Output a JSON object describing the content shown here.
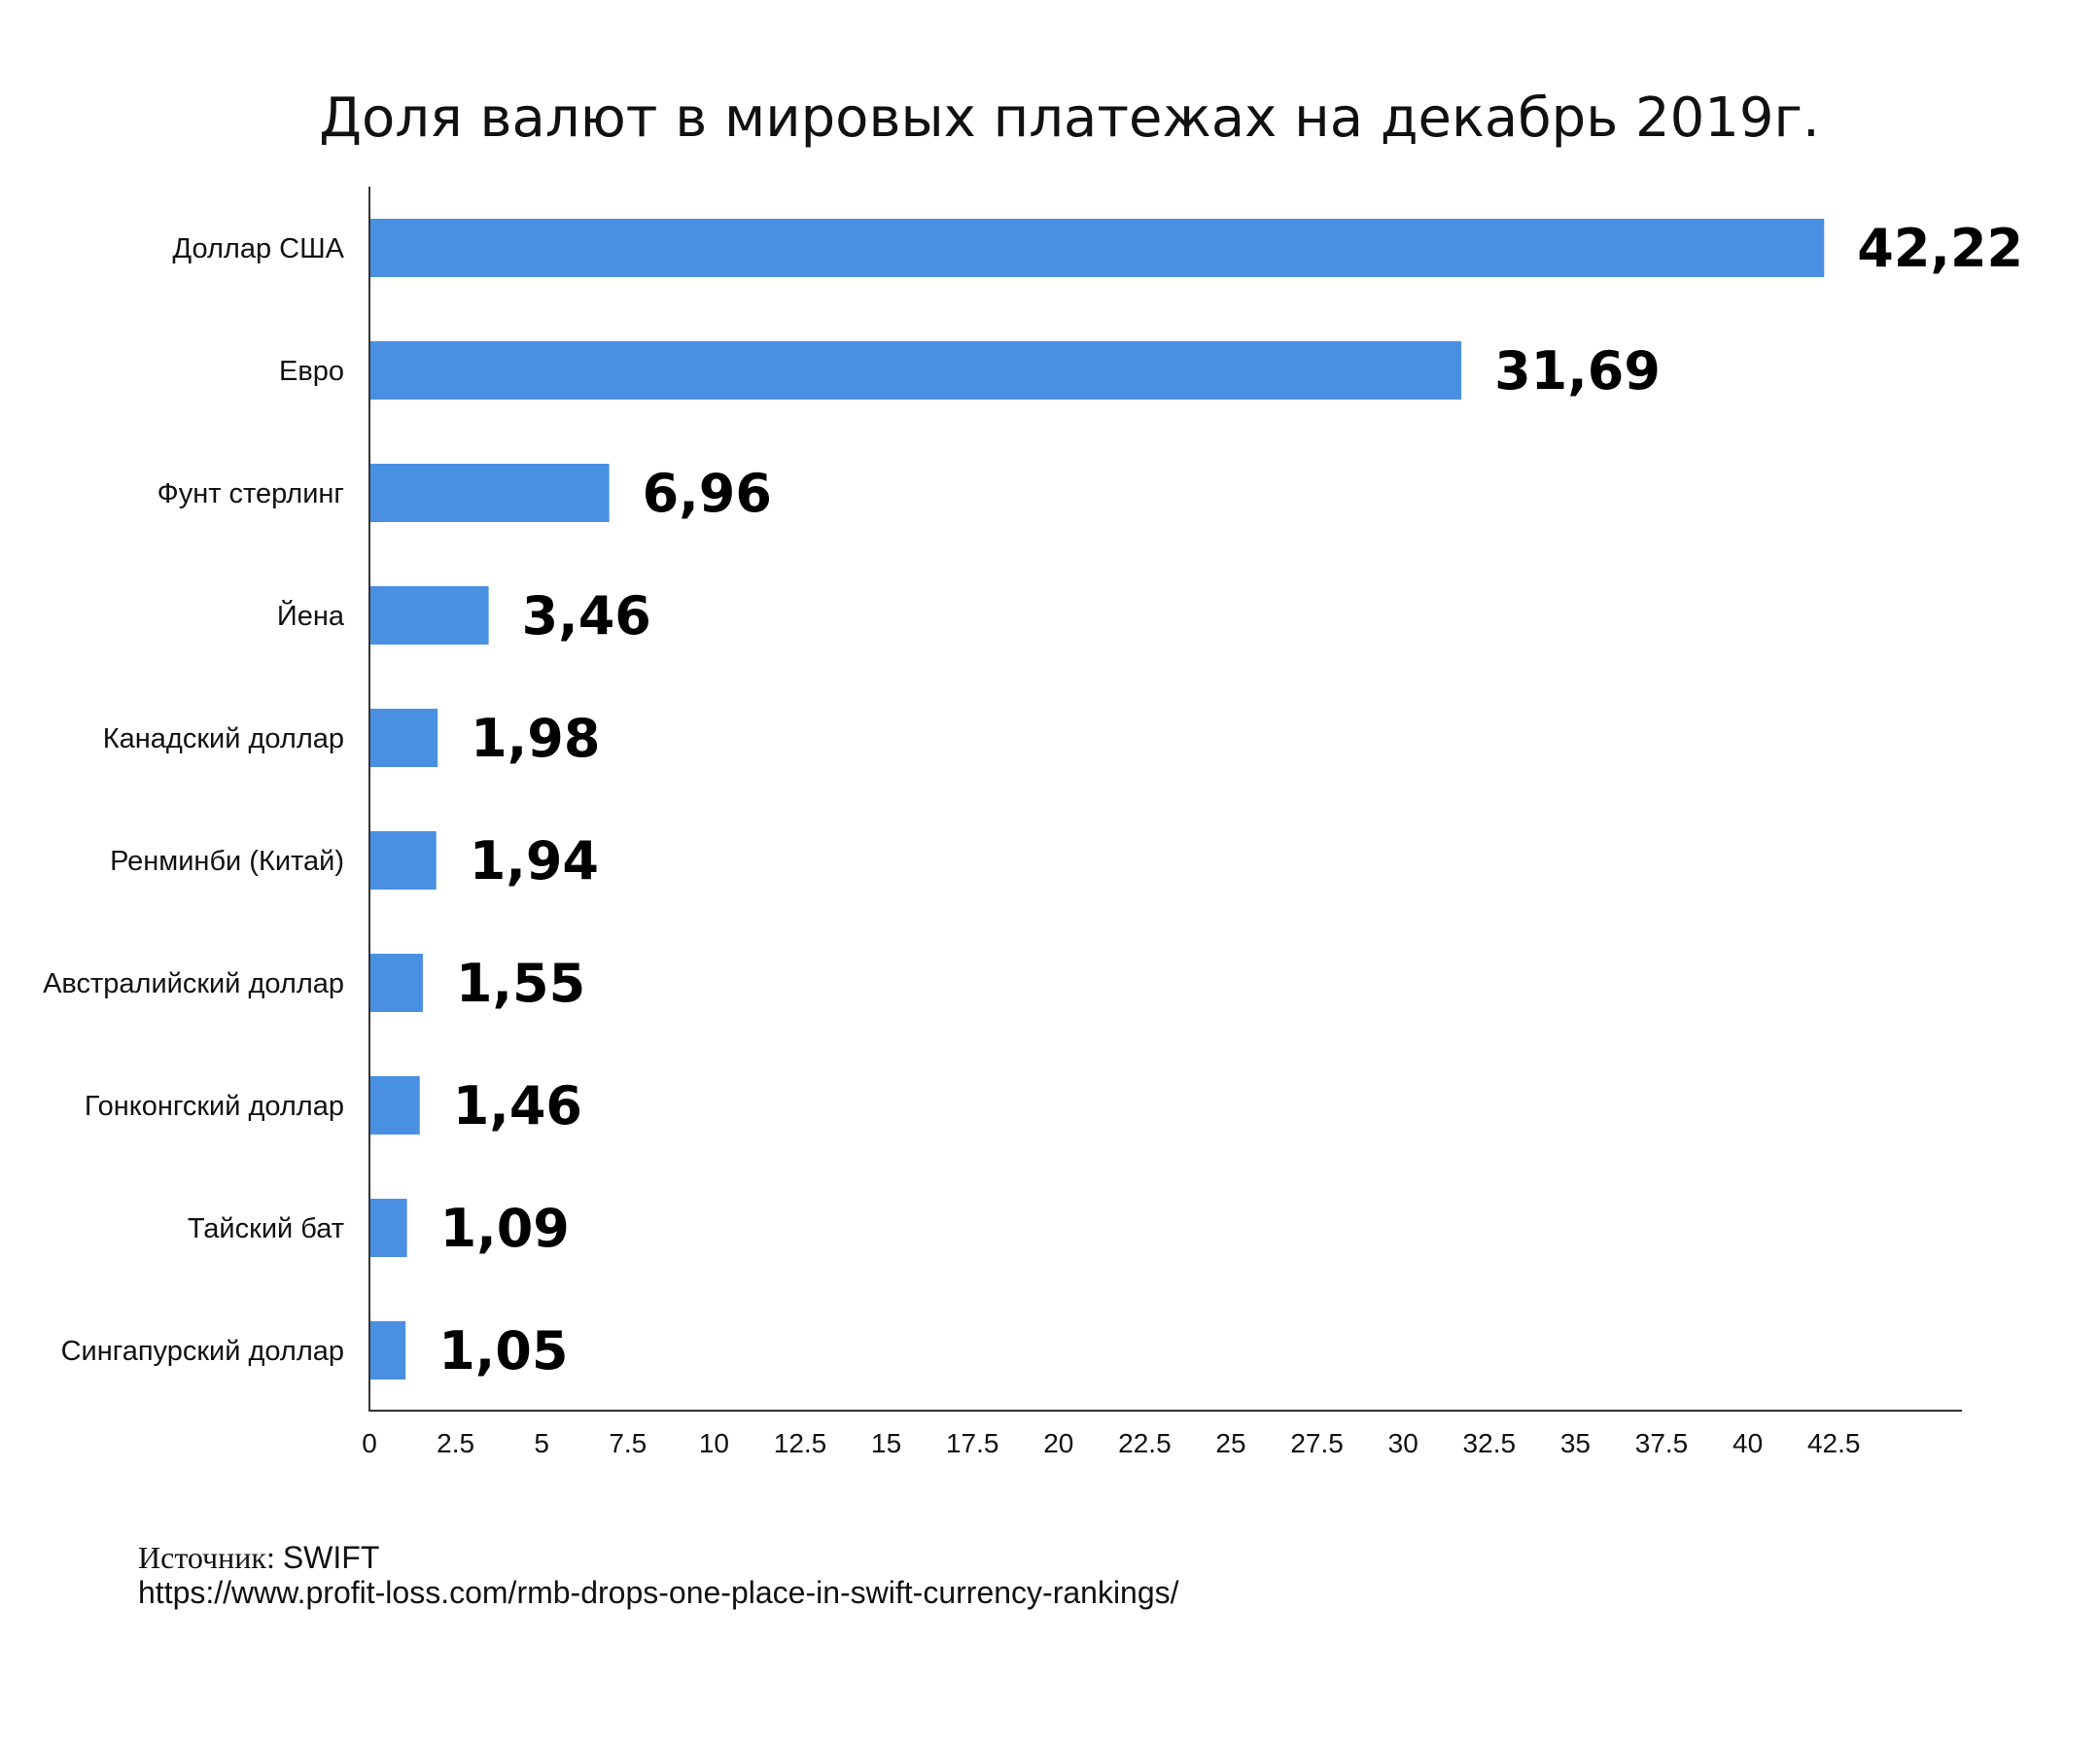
{
  "chart_data": {
    "type": "bar",
    "orientation": "horizontal",
    "title": "Доля валют в мировых платежах на декабрь 2019г.",
    "categories": [
      "Доллар США",
      "Евро",
      "Фунт стерлинг",
      "Йена",
      "Канадский доллар",
      "Ренминби (Китай)",
      "Австралийский доллар",
      "Гонконгский доллар",
      "Тайский бат",
      "Сингапурский доллар"
    ],
    "values": [
      42.22,
      31.69,
      6.96,
      3.46,
      1.98,
      1.94,
      1.55,
      1.46,
      1.09,
      1.05
    ],
    "value_labels": [
      "42,22",
      "31,69",
      "6,96",
      "3,46",
      "1,98",
      "1,94",
      "1,55",
      "1,46",
      "1,09",
      "1,05"
    ],
    "x_ticks": [
      "0",
      "2.5",
      "5",
      "7.5",
      "10",
      "12.5",
      "15",
      "17.5",
      "20",
      "22.5",
      "25",
      "27.5",
      "30",
      "32.5",
      "35",
      "37.5",
      "40",
      "42.5"
    ],
    "xlim": [
      0,
      44.3
    ],
    "xlabel": "",
    "ylabel": "",
    "grid": false,
    "legend": "none",
    "bar_color": "#4a90e2"
  },
  "source": {
    "prefix": "Источник: ",
    "name": "SWIFT",
    "url": "https://www.profit-loss.com/rmb-drops-one-place-in-swift-currency-rankings/"
  }
}
